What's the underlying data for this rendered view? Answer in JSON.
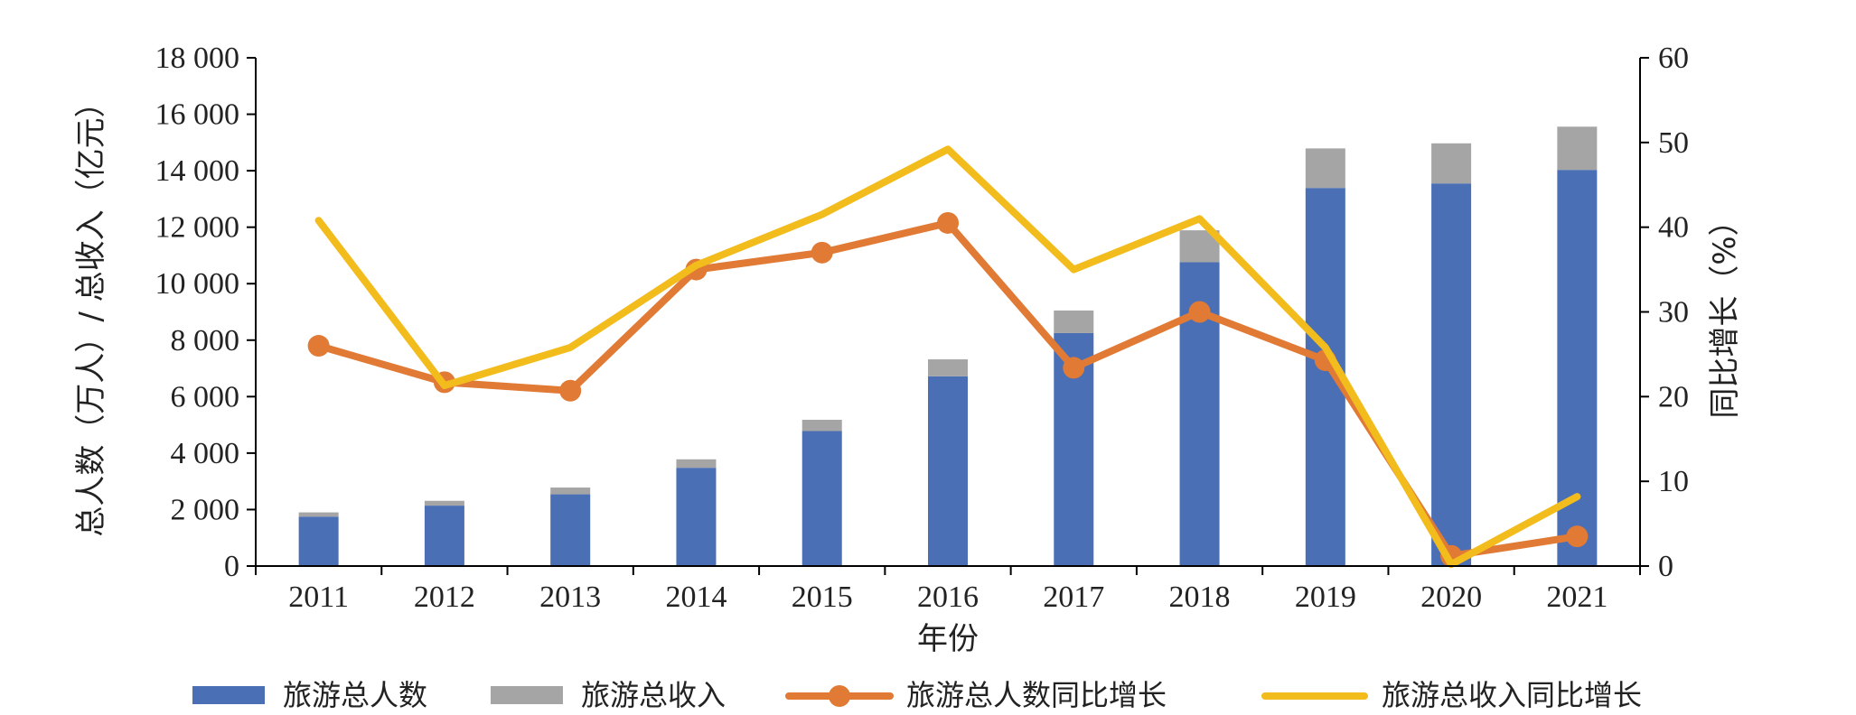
{
  "chart_data": {
    "type": "bar",
    "title": "",
    "xlabel": "年份",
    "ylabel_left": "总人数（万人）/ 总收入（亿元）",
    "ylabel_right": "同比增长（%）",
    "categories": [
      "2011",
      "2012",
      "2013",
      "2014",
      "2015",
      "2016",
      "2017",
      "2018",
      "2019",
      "2020",
      "2021"
    ],
    "y_left": {
      "range": [
        0,
        18000
      ],
      "ticks": [
        0,
        2000,
        4000,
        6000,
        8000,
        10000,
        12000,
        14000,
        16000,
        18000
      ],
      "tick_labels": [
        "0",
        "2 000",
        "4 000",
        "6 000",
        "8 000",
        "10 000",
        "12 000",
        "14 000",
        "16 000",
        "18 000"
      ]
    },
    "y_right": {
      "range": [
        0,
        60
      ],
      "ticks": [
        0,
        10,
        20,
        30,
        40,
        50,
        60
      ],
      "tick_labels": [
        "0",
        "10",
        "20",
        "30",
        "40",
        "50",
        "60"
      ]
    },
    "stack_series": [
      {
        "name": "旅游总人数",
        "kind": "bar",
        "axis": "left",
        "color": "#4a6fb5",
        "values": [
          1750,
          2140,
          2540,
          3480,
          4780,
          6720,
          8250,
          10760,
          13390,
          13550,
          14030
        ]
      },
      {
        "name": "旅游总收入",
        "kind": "bar",
        "axis": "left",
        "color": "#a5a5a5",
        "values": [
          150,
          170,
          240,
          300,
          400,
          600,
          800,
          1130,
          1400,
          1420,
          1530
        ]
      }
    ],
    "line_series": [
      {
        "name": "旅游总人数同比增长",
        "kind": "line-marker",
        "axis": "right",
        "color": "#e07a35",
        "values": [
          26.0,
          21.7,
          20.7,
          35.0,
          37.0,
          40.5,
          23.4,
          30.0,
          24.3,
          1.2,
          3.5
        ]
      },
      {
        "name": "旅游总收入同比增长",
        "kind": "line",
        "axis": "right",
        "color": "#f2bc1d",
        "values": [
          40.8,
          21.3,
          25.8,
          35.5,
          41.5,
          49.2,
          35.0,
          41.0,
          25.8,
          0.2,
          8.2
        ]
      }
    ],
    "grid": false,
    "legend_position": "bottom"
  }
}
